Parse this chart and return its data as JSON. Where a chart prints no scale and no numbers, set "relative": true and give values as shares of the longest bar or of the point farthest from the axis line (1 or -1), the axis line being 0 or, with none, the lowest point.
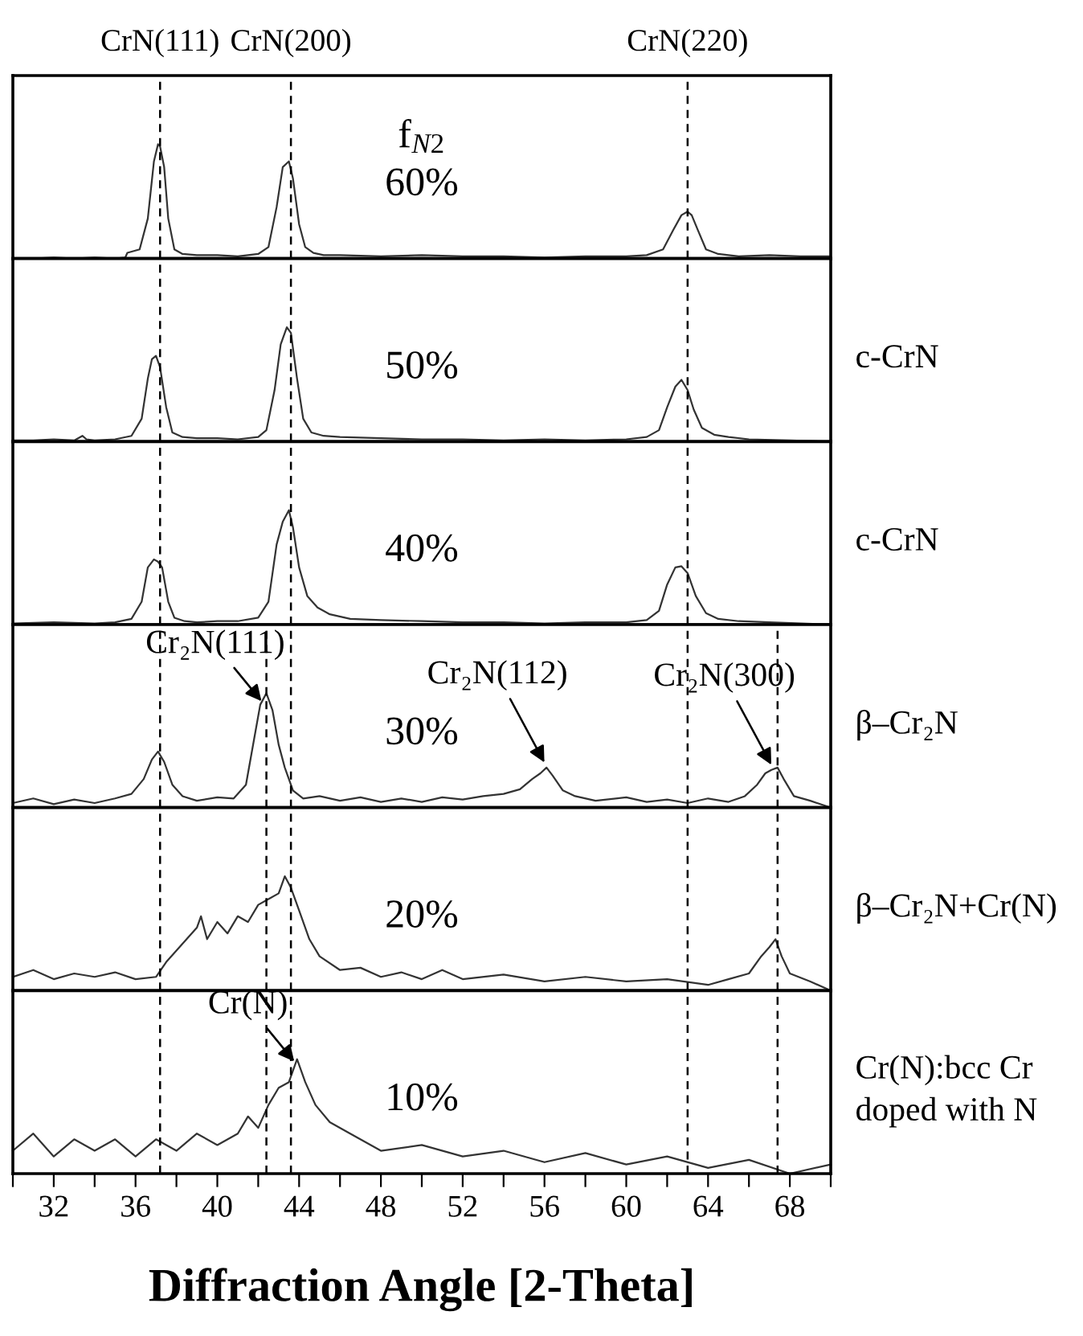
{
  "chart_data": [
    {
      "type": "line",
      "relative": true,
      "color": "#333333",
      "xlim": [
        30,
        70
      ],
      "tick_labels": false,
      "x": [
        30,
        31,
        32,
        33,
        34,
        35,
        35.5,
        35.6,
        36.2,
        36.6,
        36.9,
        37.1,
        37.2,
        37.4,
        37.6,
        37.9,
        38.3,
        39,
        40,
        41,
        42,
        42.5,
        42.9,
        43.2,
        43.5,
        43.7,
        44.0,
        44.3,
        44.7,
        45.2,
        46,
        48,
        50,
        52,
        54,
        56,
        58,
        60,
        61,
        61.8,
        62.3,
        62.7,
        63.0,
        63.2,
        63.5,
        63.9,
        64.5,
        65.5,
        67,
        68.5,
        70
      ],
      "values": [
        0,
        0,
        0.01,
        0,
        0.01,
        0,
        0.01,
        0.05,
        0.08,
        0.35,
        0.85,
        1,
        0.98,
        0.8,
        0.35,
        0.08,
        0.04,
        0.03,
        0.03,
        0.02,
        0.04,
        0.1,
        0.45,
        0.8,
        0.85,
        0.7,
        0.3,
        0.1,
        0.05,
        0.03,
        0.03,
        0.02,
        0.03,
        0.02,
        0.02,
        0.01,
        0.02,
        0.02,
        0.03,
        0.08,
        0.25,
        0.38,
        0.41,
        0.38,
        0.25,
        0.08,
        0.04,
        0.02,
        0.03,
        0.02,
        0.02
      ],
      "annotations": [
        "f$_{N2}$\n60%"
      ],
      "ref_lines": [
        {
          "axis": "x",
          "value": 37.2,
          "label": "CrN(111)",
          "color": "#000000",
          "line_style": "dashed"
        },
        {
          "axis": "x",
          "value": 43.6,
          "label": "CrN(200)",
          "color": "#000000",
          "line_style": "dashed"
        },
        {
          "axis": "x",
          "value": 63.0,
          "label": "CrN(220)",
          "color": "#000000",
          "line_style": "dashed"
        }
      ]
    },
    {
      "type": "line",
      "relative": true,
      "color": "#333333",
      "xlim": [
        30,
        70
      ],
      "tick_labels": false,
      "x": [
        30,
        31,
        32,
        33,
        33.4,
        33.6,
        34,
        35,
        35.8,
        36.3,
        36.6,
        36.8,
        37.0,
        37.2,
        37.5,
        37.8,
        38.3,
        39,
        40,
        41,
        42,
        42.4,
        42.8,
        43.1,
        43.4,
        43.6,
        43.9,
        44.2,
        44.6,
        45.2,
        46,
        48,
        50,
        52,
        54,
        56,
        58,
        60,
        61,
        61.6,
        62.0,
        62.4,
        62.7,
        63.0,
        63.3,
        63.7,
        64.3,
        65,
        66,
        68,
        70
      ],
      "values": [
        0.01,
        0.01,
        0.02,
        0.01,
        0.05,
        0.02,
        0.01,
        0.02,
        0.05,
        0.2,
        0.55,
        0.72,
        0.75,
        0.65,
        0.3,
        0.08,
        0.04,
        0.03,
        0.03,
        0.02,
        0.04,
        0.1,
        0.45,
        0.85,
        1,
        0.95,
        0.55,
        0.2,
        0.08,
        0.05,
        0.04,
        0.03,
        0.02,
        0.02,
        0.01,
        0.02,
        0.01,
        0.02,
        0.04,
        0.1,
        0.3,
        0.48,
        0.54,
        0.45,
        0.28,
        0.12,
        0.06,
        0.04,
        0.02,
        0.01,
        0.0
      ],
      "annotations": [
        "50%",
        "c-CrN"
      ],
      "ref_lines": [
        {
          "axis": "x",
          "value": 37.2,
          "color": "#000000",
          "line_style": "dashed"
        },
        {
          "axis": "x",
          "value": 43.6,
          "color": "#000000",
          "line_style": "dashed"
        },
        {
          "axis": "x",
          "value": 63.0,
          "color": "#000000",
          "line_style": "dashed"
        }
      ]
    },
    {
      "type": "line",
      "relative": true,
      "color": "#333333",
      "xlim": [
        30,
        70
      ],
      "tick_labels": false,
      "x": [
        30,
        32,
        34,
        35,
        35.8,
        36.3,
        36.6,
        36.9,
        37.1,
        37.3,
        37.6,
        37.9,
        38.4,
        39,
        40,
        41,
        42,
        42.5,
        42.9,
        43.2,
        43.5,
        43.7,
        44.0,
        44.4,
        44.9,
        45.5,
        46.5,
        48,
        50,
        52,
        54,
        56,
        58,
        60,
        61,
        61.6,
        62.0,
        62.4,
        62.7,
        63.0,
        63.4,
        63.9,
        64.5,
        65.5,
        67,
        70
      ],
      "values": [
        0.01,
        0.02,
        0.01,
        0.02,
        0.05,
        0.2,
        0.5,
        0.57,
        0.55,
        0.5,
        0.2,
        0.06,
        0.03,
        0.02,
        0.03,
        0.03,
        0.06,
        0.2,
        0.7,
        0.9,
        1,
        0.85,
        0.5,
        0.25,
        0.15,
        0.09,
        0.05,
        0.04,
        0.03,
        0.02,
        0.02,
        0.01,
        0.02,
        0.02,
        0.04,
        0.12,
        0.35,
        0.5,
        0.51,
        0.45,
        0.25,
        0.1,
        0.05,
        0.03,
        0.02,
        0.0
      ],
      "annotations": [
        "40%",
        "c-CrN"
      ],
      "ref_lines": [
        {
          "axis": "x",
          "value": 37.2,
          "color": "#000000",
          "line_style": "dashed"
        },
        {
          "axis": "x",
          "value": 43.6,
          "color": "#000000",
          "line_style": "dashed"
        },
        {
          "axis": "x",
          "value": 63.0,
          "color": "#000000",
          "line_style": "dashed"
        }
      ]
    },
    {
      "type": "line",
      "relative": true,
      "color": "#333333",
      "xlim": [
        30,
        70
      ],
      "tick_labels": false,
      "x": [
        30,
        31,
        32,
        33,
        34,
        35,
        35.8,
        36.4,
        36.8,
        37.1,
        37.4,
        37.8,
        38.3,
        39,
        40,
        40.8,
        41.4,
        41.8,
        42.1,
        42.4,
        42.7,
        43.0,
        43.3,
        43.7,
        44.2,
        45,
        46,
        47,
        48,
        49,
        50,
        51,
        52,
        53,
        54,
        54.8,
        55.4,
        55.8,
        56.1,
        56.4,
        56.9,
        57.5,
        58.5,
        60,
        61,
        62,
        63,
        64,
        65,
        65.8,
        66.4,
        66.8,
        67.1,
        67.4,
        67.7,
        68.2,
        69,
        70
      ],
      "values": [
        0.04,
        0.08,
        0.03,
        0.07,
        0.04,
        0.08,
        0.12,
        0.25,
        0.42,
        0.49,
        0.4,
        0.2,
        0.1,
        0.06,
        0.09,
        0.08,
        0.2,
        0.6,
        0.9,
        1,
        0.85,
        0.55,
        0.35,
        0.15,
        0.08,
        0.1,
        0.06,
        0.09,
        0.05,
        0.08,
        0.05,
        0.09,
        0.07,
        0.1,
        0.12,
        0.16,
        0.25,
        0.3,
        0.35,
        0.28,
        0.15,
        0.1,
        0.06,
        0.09,
        0.05,
        0.07,
        0.04,
        0.08,
        0.05,
        0.1,
        0.2,
        0.3,
        0.33,
        0.35,
        0.25,
        0.1,
        0.06,
        0.0
      ],
      "annotations": [
        "30%",
        "β–Cr₂N",
        {
          "text": "Cr₂N(111)",
          "x": 42.3,
          "y": 0.9
        },
        {
          "text": "Cr₂N(112)",
          "x": 56.1,
          "y": 0.36
        },
        {
          "text": "Cr₂N(300)",
          "x": 67.2,
          "y": 0.34
        }
      ],
      "ref_lines": [
        {
          "axis": "x",
          "value": 37.2,
          "color": "#000000",
          "line_style": "dashed"
        },
        {
          "axis": "x",
          "value": 42.4,
          "color": "#000000",
          "line_style": "dashed"
        },
        {
          "axis": "x",
          "value": 43.6,
          "color": "#000000",
          "line_style": "dashed"
        },
        {
          "axis": "x",
          "value": 63.0,
          "color": "#000000",
          "line_style": "dashed"
        },
        {
          "axis": "x",
          "value": 67.4,
          "color": "#000000",
          "line_style": "dashed"
        }
      ]
    },
    {
      "type": "line",
      "relative": true,
      "color": "#333333",
      "xlim": [
        30,
        70
      ],
      "tick_labels": false,
      "x": [
        30,
        31,
        32,
        33,
        34,
        35,
        36,
        37,
        37.5,
        38,
        38.5,
        39,
        39.2,
        39.5,
        40,
        40.5,
        41,
        41.5,
        42,
        42.5,
        43,
        43.3,
        43.6,
        44,
        44.5,
        45,
        46,
        47,
        48,
        49,
        50,
        51,
        52,
        54,
        56,
        58,
        60,
        62,
        64,
        65,
        66,
        66.6,
        67,
        67.3,
        67.6,
        68,
        69,
        70
      ],
      "values": [
        0.12,
        0.18,
        0.1,
        0.15,
        0.12,
        0.16,
        0.1,
        0.12,
        0.25,
        0.35,
        0.45,
        0.55,
        0.65,
        0.45,
        0.6,
        0.5,
        0.65,
        0.6,
        0.75,
        0.8,
        0.85,
        1,
        0.9,
        0.7,
        0.45,
        0.3,
        0.18,
        0.2,
        0.12,
        0.16,
        0.1,
        0.18,
        0.1,
        0.14,
        0.08,
        0.12,
        0.08,
        0.1,
        0.05,
        0.1,
        0.15,
        0.3,
        0.38,
        0.45,
        0.3,
        0.15,
        0.08,
        0.0
      ],
      "annotations": [
        "20%",
        "β–Cr₂N+Cr(N)"
      ],
      "ref_lines": [
        {
          "axis": "x",
          "value": 37.2,
          "color": "#000000",
          "line_style": "dashed"
        },
        {
          "axis": "x",
          "value": 42.4,
          "color": "#000000",
          "line_style": "dashed"
        },
        {
          "axis": "x",
          "value": 43.6,
          "color": "#000000",
          "line_style": "dashed"
        },
        {
          "axis": "x",
          "value": 63.0,
          "color": "#000000",
          "line_style": "dashed"
        },
        {
          "axis": "x",
          "value": 67.4,
          "color": "#000000",
          "line_style": "dashed"
        }
      ]
    },
    {
      "type": "line",
      "relative": true,
      "color": "#333333",
      "xlim": [
        30,
        70
      ],
      "tick_labels": "x",
      "xlabel": "Diffraction Angle [2-Theta]",
      "xticks": [
        {
          "value": 30,
          "label": null
        },
        32,
        {
          "value": 34,
          "label": null
        },
        36,
        {
          "value": 38,
          "label": null
        },
        40,
        {
          "value": 42,
          "label": null
        },
        44,
        {
          "value": 46,
          "label": null
        },
        48,
        {
          "value": 50,
          "label": null
        },
        52,
        {
          "value": 54,
          "label": null
        },
        56,
        {
          "value": 58,
          "label": null
        },
        60,
        {
          "value": 62,
          "label": null
        },
        64,
        {
          "value": 66,
          "label": null
        },
        68,
        {
          "value": 70,
          "label": null
        }
      ],
      "x": [
        30,
        31,
        32,
        33,
        34,
        35,
        36,
        37,
        38,
        39,
        40,
        41,
        41.5,
        42,
        42.5,
        43,
        43.5,
        43.9,
        44.3,
        44.8,
        45.5,
        46.5,
        48,
        50,
        52,
        54,
        56,
        58,
        60,
        62,
        64,
        66,
        68,
        70
      ],
      "values": [
        0.2,
        0.35,
        0.15,
        0.3,
        0.2,
        0.3,
        0.15,
        0.3,
        0.2,
        0.35,
        0.25,
        0.35,
        0.5,
        0.4,
        0.6,
        0.75,
        0.8,
        1,
        0.8,
        0.6,
        0.45,
        0.35,
        0.2,
        0.25,
        0.15,
        0.2,
        0.1,
        0.18,
        0.08,
        0.15,
        0.05,
        0.12,
        0.0,
        0.08
      ],
      "annotations": [
        "10%",
        "Cr(N):bcc Cr\ndoped with N",
        {
          "text": "Cr(N)",
          "x": 43.9,
          "y": 0.95
        }
      ],
      "ref_lines": [
        {
          "axis": "x",
          "value": 37.2,
          "color": "#000000",
          "line_style": "dashed"
        },
        {
          "axis": "x",
          "value": 42.4,
          "color": "#000000",
          "line_style": "dashed"
        },
        {
          "axis": "x",
          "value": 43.6,
          "color": "#000000",
          "line_style": "dashed"
        },
        {
          "axis": "x",
          "value": 63.0,
          "color": "#000000",
          "line_style": "dashed"
        },
        {
          "axis": "x",
          "value": 67.4,
          "color": "#000000",
          "line_style": "dashed"
        }
      ]
    }
  ]
}
